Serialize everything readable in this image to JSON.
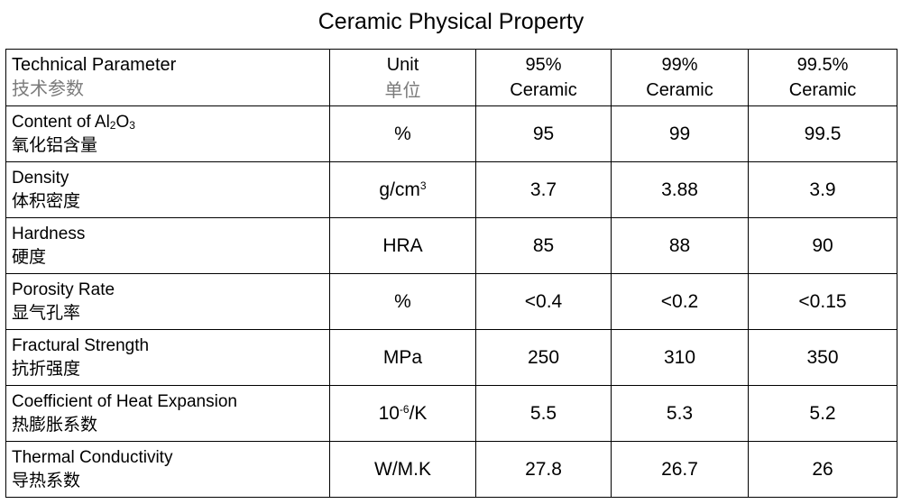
{
  "title": "Ceramic Physical Property",
  "header": {
    "parameter_en": "Technical Parameter",
    "parameter_zh": "技术参数",
    "unit_en": "Unit",
    "unit_zh": "单位",
    "grades": [
      {
        "line1": "95%",
        "line2": "Ceramic"
      },
      {
        "line1": "99%",
        "line2": "Ceramic"
      },
      {
        "line1": "99.5%",
        "line2": "Ceramic"
      }
    ]
  },
  "rows": [
    {
      "name_en_pre": "Content of Al",
      "name_en_sub1": "2",
      "name_en_mid": "O",
      "name_en_sub2": "3",
      "name_zh": "氧化铝含量",
      "unit": "%",
      "values": [
        "95",
        "99",
        "99.5"
      ]
    },
    {
      "name_en": "Density",
      "name_zh": "体积密度",
      "unit_base": "g/cm",
      "unit_sup": "3",
      "values": [
        "3.7",
        "3.88",
        "3.9"
      ]
    },
    {
      "name_en": "Hardness",
      "name_zh": "硬度",
      "unit": "HRA",
      "values": [
        "85",
        "88",
        "90"
      ]
    },
    {
      "name_en": "Porosity Rate",
      "name_zh": "显气孔率",
      "unit": "%",
      "values": [
        "<0.4",
        "<0.2",
        "<0.15"
      ]
    },
    {
      "name_en": "Fractural Strength",
      "name_zh": "抗折强度",
      "unit": "MPa",
      "values": [
        "250",
        "310",
        "350"
      ]
    },
    {
      "name_en": "Coefficient of Heat Expansion",
      "name_zh": "热膨胀系数",
      "unit_base": "10",
      "unit_sup": "-6",
      "unit_tail": "/K",
      "values": [
        "5.5",
        "5.3",
        "5.2"
      ]
    },
    {
      "name_en": "Thermal Conductivity",
      "name_zh": "导热系数",
      "unit": "W/M.K",
      "values": [
        "27.8",
        "26.7",
        "26"
      ]
    }
  ]
}
